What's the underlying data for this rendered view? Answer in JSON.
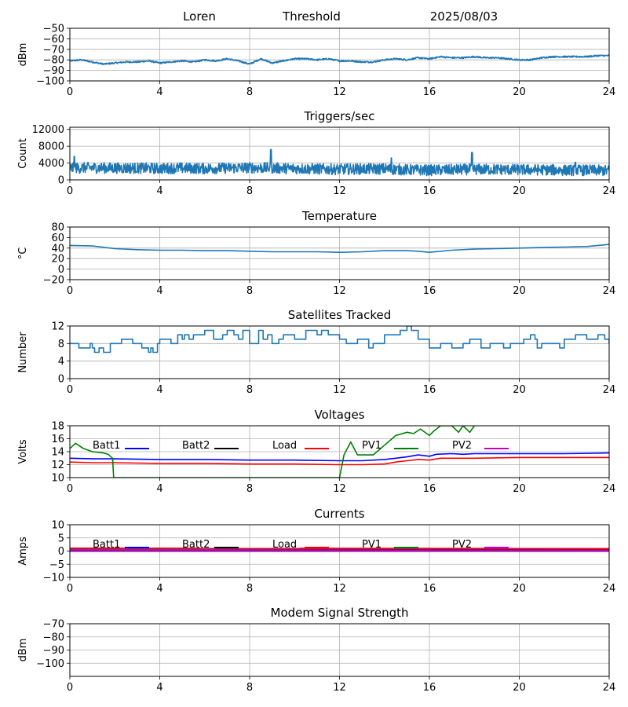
{
  "header": {
    "station": "Loren",
    "mode": "Threshold",
    "date": "2025/08/03"
  },
  "chart_data": [
    {
      "id": "signal",
      "type": "line",
      "title": "",
      "xlabel": "",
      "ylabel": "dBm",
      "xlim": [
        0,
        24
      ],
      "ylim": [
        -100,
        -50
      ],
      "xticks": [
        0,
        4,
        8,
        12,
        16,
        20,
        24
      ],
      "yticks": [
        -100,
        -90,
        -80,
        -70,
        -60,
        -50
      ],
      "grid": true,
      "series": [
        {
          "color": "#1f77b4",
          "noise": 0.7,
          "x": [
            0,
            0.5,
            1,
            1.5,
            2,
            2.5,
            3,
            3.5,
            4,
            4.5,
            5,
            5.5,
            6,
            6.5,
            7,
            7.5,
            8,
            8.5,
            9,
            9.5,
            10,
            10.5,
            11,
            11.5,
            12,
            12.5,
            13,
            13.5,
            14,
            14.5,
            15,
            15.5,
            16,
            16.5,
            17,
            17.5,
            18,
            18.5,
            19,
            19.5,
            20,
            20.5,
            21,
            21.5,
            22,
            22.5,
            23,
            23.5,
            24
          ],
          "values": [
            -81,
            -80,
            -82,
            -84,
            -83,
            -82,
            -82,
            -81,
            -83,
            -82,
            -81,
            -82,
            -80,
            -81,
            -79,
            -81,
            -84,
            -79,
            -83,
            -81,
            -79,
            -79,
            -80,
            -79,
            -81,
            -81,
            -82,
            -82,
            -80,
            -79,
            -80,
            -78,
            -79,
            -77,
            -78,
            -78,
            -77,
            -78,
            -78,
            -79,
            -80,
            -80,
            -78,
            -77,
            -77,
            -77,
            -77,
            -76,
            -76
          ]
        }
      ]
    },
    {
      "id": "triggers",
      "type": "line",
      "title": "Triggers/sec",
      "xlabel": "",
      "ylabel": "Count",
      "xlim": [
        0,
        24
      ],
      "ylim": [
        0,
        12500
      ],
      "xticks": [
        0,
        4,
        8,
        12,
        16,
        20,
        24
      ],
      "yticks": [
        0,
        4000,
        8000,
        12000
      ],
      "grid": true,
      "series": [
        {
          "color": "#1f77b4",
          "noise": 1300,
          "x": [
            0,
            1,
            2,
            3,
            4,
            5,
            6,
            7,
            8,
            9,
            10,
            11,
            12,
            13,
            14,
            15,
            16,
            17,
            18,
            19,
            20,
            21,
            22,
            23,
            24
          ],
          "values": [
            2800,
            2900,
            2800,
            2800,
            2700,
            2800,
            2700,
            2800,
            2900,
            2800,
            2700,
            2600,
            2500,
            2600,
            2600,
            2400,
            2300,
            2400,
            2500,
            2500,
            2400,
            2400,
            2300,
            2300,
            2200
          ],
          "spikes": [
            [
              0.2,
              5600
            ],
            [
              8.95,
              7200
            ],
            [
              14.3,
              5200
            ],
            [
              17.9,
              6500
            ],
            [
              22.5,
              4200
            ]
          ]
        }
      ]
    },
    {
      "id": "temperature",
      "type": "line",
      "title": "Temperature",
      "xlabel": "",
      "ylabel": "°C",
      "xlim": [
        0,
        24
      ],
      "ylim": [
        -20,
        80
      ],
      "xticks": [
        0,
        4,
        8,
        12,
        16,
        20,
        24
      ],
      "yticks": [
        -20,
        0,
        20,
        40,
        60,
        80
      ],
      "grid": true,
      "series": [
        {
          "color": "#1f77b4",
          "noise": 0,
          "x": [
            0,
            1,
            2,
            3,
            4,
            5,
            6,
            7,
            8,
            9,
            10,
            11,
            12,
            13,
            14,
            15,
            15.5,
            16,
            17,
            18,
            19,
            20,
            21,
            22,
            23,
            24
          ],
          "values": [
            45,
            44,
            39,
            37,
            36,
            36,
            35,
            35,
            34,
            33,
            33,
            33,
            32,
            33,
            35,
            35,
            34,
            32,
            36,
            38,
            39,
            40,
            41,
            42,
            43,
            47
          ]
        }
      ]
    },
    {
      "id": "satellites",
      "type": "line",
      "title": "Satellites Tracked",
      "xlabel": "",
      "ylabel": "Number",
      "xlim": [
        0,
        24
      ],
      "ylim": [
        0,
        12
      ],
      "xticks": [
        0,
        4,
        8,
        12,
        16,
        20,
        24
      ],
      "yticks": [
        0,
        4,
        8,
        12
      ],
      "grid": true,
      "step": true,
      "series": [
        {
          "color": "#1f77b4",
          "noise": 0,
          "x": [
            0,
            0.4,
            0.9,
            1,
            1.1,
            1.3,
            1.5,
            1.8,
            2.3,
            2.8,
            3.2,
            3.5,
            3.6,
            3.7,
            3.9,
            4,
            4.5,
            4.8,
            5,
            5.1,
            5.3,
            5.5,
            6,
            6.4,
            6.8,
            7,
            7.3,
            7.5,
            7.7,
            8,
            8.4,
            8.6,
            8.8,
            9,
            9.3,
            9.5,
            10,
            10.5,
            11,
            11.2,
            11.5,
            12,
            12.3,
            12.8,
            13.3,
            13.5,
            14,
            14.7,
            15,
            15.2,
            15.5,
            16,
            16.5,
            17,
            17.5,
            17.8,
            18.3,
            18.7,
            19.3,
            19.6,
            20.2,
            20.5,
            20.7,
            20.8,
            21,
            21.5,
            21.8,
            22,
            22.5,
            23,
            23.5,
            23.8,
            24
          ],
          "values": [
            8,
            7,
            8,
            7,
            6,
            7,
            6,
            8,
            9,
            8,
            7,
            6,
            7,
            6,
            8,
            9,
            8,
            10,
            9,
            10,
            9,
            10,
            11,
            9,
            10,
            11,
            10,
            9,
            11,
            8,
            11,
            9,
            10,
            8,
            9,
            10,
            9,
            11,
            10,
            11,
            10,
            9,
            8,
            9,
            7,
            8,
            10,
            11,
            12,
            11,
            9,
            7,
            8,
            7,
            8,
            9,
            7,
            8,
            7,
            8,
            9,
            10,
            9,
            7,
            8,
            8,
            7,
            9,
            10,
            9,
            10,
            9,
            8
          ]
        }
      ]
    },
    {
      "id": "voltages",
      "type": "line",
      "title": "Voltages",
      "xlabel": "",
      "ylabel": "Volts",
      "xlim": [
        0,
        24
      ],
      "ylim": [
        10,
        18
      ],
      "xticks": [
        0,
        4,
        8,
        12,
        16,
        20,
        24
      ],
      "yticks": [
        10,
        12,
        14,
        16,
        18
      ],
      "grid": true,
      "legend": "inline-top",
      "series": [
        {
          "name": "Batt1",
          "color": "#0000ff",
          "noise": 0,
          "x": [
            0,
            1,
            2,
            4,
            6,
            8,
            10,
            12,
            13,
            14,
            14.5,
            15,
            15.5,
            16,
            16.3,
            17,
            17.5,
            18,
            20,
            22,
            24
          ],
          "values": [
            13.0,
            12.9,
            12.9,
            12.8,
            12.8,
            12.7,
            12.7,
            12.6,
            12.6,
            12.8,
            13.0,
            13.2,
            13.5,
            13.3,
            13.6,
            13.7,
            13.6,
            13.7,
            13.7,
            13.7,
            13.8
          ]
        },
        {
          "name": "Batt2",
          "color": "#000000",
          "noise": 0,
          "x": [],
          "values": []
        },
        {
          "name": "Load",
          "color": "#ff0000",
          "noise": 0,
          "x": [
            0,
            1,
            2,
            4,
            6,
            8,
            10,
            12,
            13,
            14,
            14.5,
            15,
            15.5,
            16,
            16.5,
            17,
            18,
            20,
            22,
            24
          ],
          "values": [
            12.4,
            12.3,
            12.3,
            12.2,
            12.2,
            12.1,
            12.1,
            12.0,
            12.0,
            12.1,
            12.4,
            12.6,
            12.8,
            12.7,
            13.0,
            13.0,
            13.0,
            13.1,
            13.1,
            13.1
          ]
        },
        {
          "name": "PV1",
          "color": "#008000",
          "noise": 0,
          "x": [
            0,
            0.25,
            0.6,
            1,
            1.5,
            1.7,
            1.9,
            1.95,
            12,
            12.2,
            12.5,
            12.8,
            13.5,
            14,
            14.5,
            15,
            15.3,
            15.6,
            16,
            16.2,
            16.5,
            17,
            17.3,
            17.5,
            17.8,
            18
          ],
          "values": [
            14.5,
            15.3,
            14.5,
            14.0,
            13.8,
            13.6,
            13.0,
            10.0,
            10.0,
            13.5,
            15.5,
            13.5,
            13.5,
            15.0,
            16.5,
            17.0,
            16.8,
            17.5,
            16.5,
            17.2,
            18.0,
            18.0,
            17.0,
            18.0,
            17.0,
            18.0
          ]
        },
        {
          "name": "PV2",
          "color": "#bf00bf",
          "noise": 0,
          "x": [],
          "values": []
        }
      ]
    },
    {
      "id": "currents",
      "type": "line",
      "title": "Currents",
      "xlabel": "",
      "ylabel": "Amps",
      "xlim": [
        0,
        24
      ],
      "ylim": [
        -10,
        10
      ],
      "xticks": [
        0,
        4,
        8,
        12,
        16,
        20,
        24
      ],
      "yticks": [
        -10,
        -5,
        0,
        5,
        10
      ],
      "grid": true,
      "legend": "inline-top",
      "series": [
        {
          "name": "Batt1",
          "color": "#0000ff",
          "noise": 0,
          "x": [
            0,
            24
          ],
          "values": [
            0.3,
            0.3
          ]
        },
        {
          "name": "Batt2",
          "color": "#000000",
          "noise": 0,
          "x": [],
          "values": []
        },
        {
          "name": "Load",
          "color": "#ff0000",
          "noise": 0,
          "x": [
            0,
            24
          ],
          "values": [
            1.0,
            0.9
          ]
        },
        {
          "name": "PV1",
          "color": "#008000",
          "noise": 0,
          "x": [
            0,
            24
          ],
          "values": [
            0.1,
            0.1
          ]
        },
        {
          "name": "PV2",
          "color": "#bf00bf",
          "noise": 0,
          "x": [
            0,
            24
          ],
          "values": [
            0.0,
            0.0
          ]
        }
      ]
    },
    {
      "id": "modem",
      "type": "line",
      "title": "Modem Signal Strength",
      "xlabel": "",
      "ylabel": "dBm",
      "xlim": [
        0,
        24
      ],
      "ylim": [
        -110,
        -70
      ],
      "xticks": [
        0,
        4,
        8,
        12,
        16,
        20,
        24
      ],
      "yticks": [
        -100,
        -90,
        -80,
        -70
      ],
      "grid": true,
      "series": []
    }
  ]
}
